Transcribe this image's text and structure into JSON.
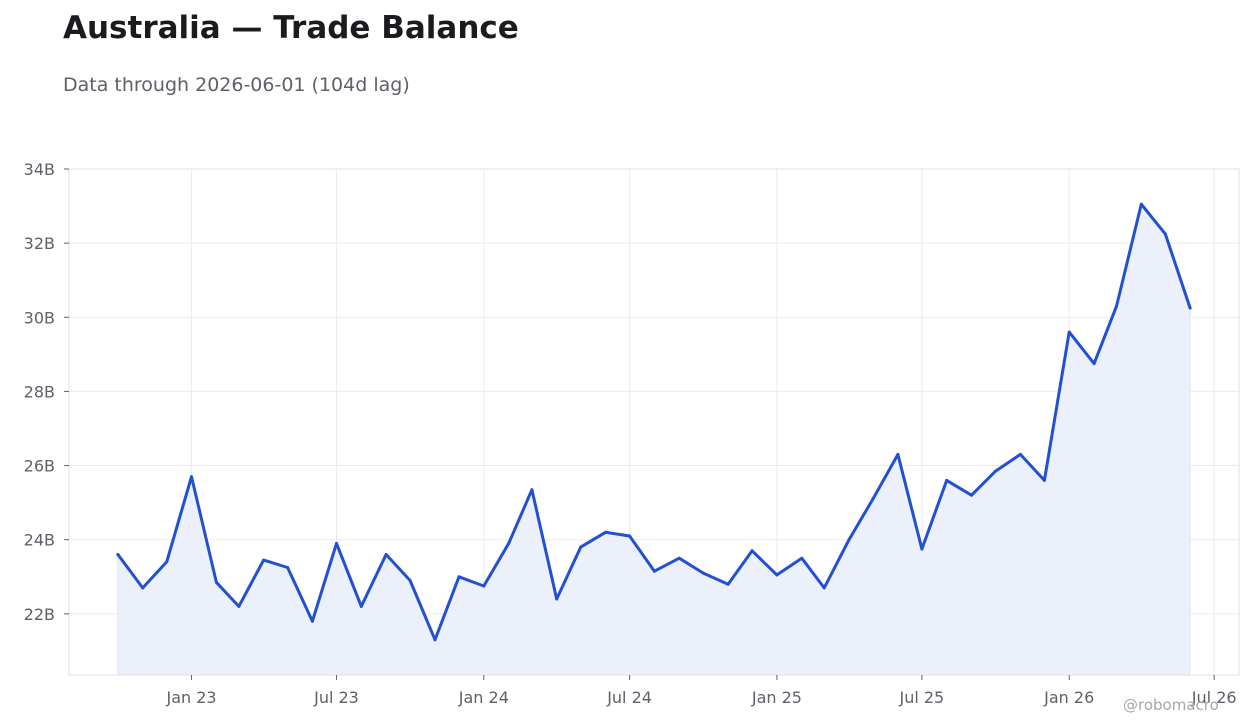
{
  "title": "Australia — Trade Balance",
  "subtitle": "Data through 2026-06-01 (104d lag)",
  "watermark": "@robomacro",
  "colors": {
    "line": "#2350d1",
    "fill": "#ebf0fb",
    "grid": "#ececf0",
    "axis": "#e1e1e6",
    "text": "#5f6068"
  },
  "chart_data": {
    "type": "area",
    "title": "Australia — Trade Balance",
    "xlabel": "",
    "ylabel": "",
    "ylim": [
      20.35,
      34
    ],
    "xlim": [
      "2022-08-01",
      "2026-08-01"
    ],
    "grid": true,
    "legend": "none",
    "y_ticks": [
      {
        "value": 22,
        "label": "22B"
      },
      {
        "value": 24,
        "label": "24B"
      },
      {
        "value": 26,
        "label": "26B"
      },
      {
        "value": 28,
        "label": "28B"
      },
      {
        "value": 30,
        "label": "30B"
      },
      {
        "value": 32,
        "label": "32B"
      },
      {
        "value": 34,
        "label": "34B"
      }
    ],
    "x_ticks": [
      {
        "date": "2023-01-01",
        "label": "Jan 23"
      },
      {
        "date": "2023-07-01",
        "label": "Jul 23"
      },
      {
        "date": "2024-01-01",
        "label": "Jan 24"
      },
      {
        "date": "2024-07-01",
        "label": "Jul 24"
      },
      {
        "date": "2025-01-01",
        "label": "Jan 25"
      },
      {
        "date": "2025-07-01",
        "label": "Jul 25"
      },
      {
        "date": "2026-01-01",
        "label": "Jan 26"
      },
      {
        "date": "2026-07-01",
        "label": "Jul 26"
      }
    ],
    "series": [
      {
        "unit": "B",
        "points": [
          [
            "2022-10-01",
            23.6
          ],
          [
            "2022-11-01",
            22.7
          ],
          [
            "2022-12-01",
            23.4
          ],
          [
            "2023-01-01",
            25.7
          ],
          [
            "2023-02-01",
            22.85
          ],
          [
            "2023-03-01",
            22.2
          ],
          [
            "2023-04-01",
            23.45
          ],
          [
            "2023-05-01",
            23.25
          ],
          [
            "2023-06-01",
            21.8
          ],
          [
            "2023-07-01",
            23.9
          ],
          [
            "2023-08-01",
            22.2
          ],
          [
            "2023-09-01",
            23.6
          ],
          [
            "2023-10-01",
            22.9
          ],
          [
            "2023-11-01",
            21.3
          ],
          [
            "2023-12-01",
            23.0
          ],
          [
            "2024-01-01",
            22.75
          ],
          [
            "2024-02-01",
            23.9
          ],
          [
            "2024-03-01",
            25.35
          ],
          [
            "2024-04-01",
            22.4
          ],
          [
            "2024-05-01",
            23.8
          ],
          [
            "2024-06-01",
            24.2
          ],
          [
            "2024-07-01",
            24.1
          ],
          [
            "2024-08-01",
            23.15
          ],
          [
            "2024-09-01",
            23.5
          ],
          [
            "2024-10-01",
            23.1
          ],
          [
            "2024-11-01",
            22.8
          ],
          [
            "2024-12-01",
            23.7
          ],
          [
            "2025-01-01",
            23.05
          ],
          [
            "2025-02-01",
            23.5
          ],
          [
            "2025-03-01",
            22.7
          ],
          [
            "2025-04-01",
            24.0
          ],
          [
            "2025-05-01",
            25.1
          ],
          [
            "2025-06-01",
            26.3
          ],
          [
            "2025-07-01",
            23.75
          ],
          [
            "2025-08-01",
            25.6
          ],
          [
            "2025-09-01",
            25.2
          ],
          [
            "2025-10-01",
            25.85
          ],
          [
            "2025-11-01",
            26.3
          ],
          [
            "2025-12-01",
            25.6
          ],
          [
            "2026-01-01",
            29.6
          ],
          [
            "2026-02-01",
            28.75
          ],
          [
            "2026-03-01",
            30.3
          ],
          [
            "2026-04-01",
            33.05
          ],
          [
            "2026-05-01",
            32.25
          ],
          [
            "2026-06-01",
            30.25
          ]
        ]
      }
    ]
  }
}
